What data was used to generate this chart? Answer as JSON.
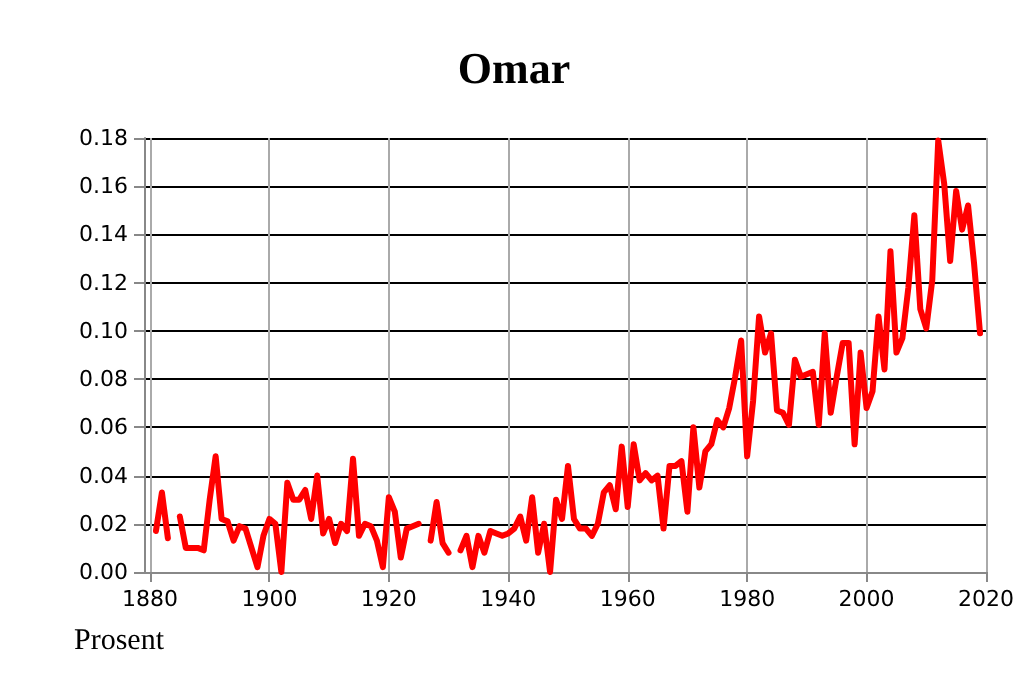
{
  "chart_data": {
    "type": "line",
    "title": "Omar",
    "ylabel": "Prosent",
    "x": [
      1881,
      1882,
      1883,
      1884,
      1885,
      1886,
      1887,
      1888,
      1889,
      1890,
      1891,
      1892,
      1893,
      1894,
      1895,
      1896,
      1897,
      1898,
      1899,
      1900,
      1901,
      1902,
      1903,
      1904,
      1905,
      1906,
      1907,
      1908,
      1909,
      1910,
      1911,
      1912,
      1913,
      1914,
      1915,
      1916,
      1917,
      1918,
      1919,
      1920,
      1921,
      1922,
      1923,
      1924,
      1925,
      1926,
      1927,
      1928,
      1929,
      1930,
      1931,
      1932,
      1933,
      1934,
      1935,
      1936,
      1937,
      1938,
      1939,
      1940,
      1941,
      1942,
      1943,
      1944,
      1945,
      1946,
      1947,
      1948,
      1949,
      1950,
      1951,
      1952,
      1953,
      1954,
      1955,
      1956,
      1957,
      1958,
      1959,
      1960,
      1961,
      1962,
      1963,
      1964,
      1965,
      1966,
      1967,
      1968,
      1969,
      1970,
      1971,
      1972,
      1973,
      1974,
      1975,
      1976,
      1977,
      1978,
      1979,
      1980,
      1981,
      1982,
      1983,
      1984,
      1985,
      1986,
      1987,
      1988,
      1989,
      1990,
      1991,
      1992,
      1993,
      1994,
      1995,
      1996,
      1997,
      1998,
      1999,
      2000,
      2001,
      2002,
      2003,
      2004,
      2005,
      2006,
      2007,
      2008,
      2009,
      2010,
      2011,
      2012,
      2013,
      2014,
      2015,
      2016,
      2017,
      2018,
      2019
    ],
    "series": [
      {
        "color": "#ff0000",
        "values": [
          0.017,
          0.033,
          0.014,
          null,
          0.023,
          0.01,
          0.01,
          0.01,
          0.009,
          0.03,
          0.048,
          0.022,
          0.021,
          0.013,
          0.019,
          0.018,
          0.01,
          0.002,
          0.015,
          0.022,
          0.02,
          0.0,
          0.037,
          0.03,
          0.03,
          0.034,
          0.022,
          0.04,
          0.016,
          0.022,
          0.012,
          0.02,
          0.017,
          0.047,
          0.015,
          0.02,
          0.019,
          0.013,
          0.002,
          0.031,
          0.025,
          0.006,
          0.018,
          0.019,
          0.02,
          null,
          0.013,
          0.029,
          0.012,
          0.008,
          null,
          0.009,
          0.015,
          0.002,
          0.015,
          0.008,
          0.017,
          0.016,
          0.015,
          0.016,
          0.018,
          0.023,
          0.013,
          0.031,
          0.008,
          0.02,
          0.0,
          0.03,
          0.022,
          0.044,
          0.022,
          0.018,
          0.018,
          0.015,
          0.02,
          0.033,
          0.036,
          0.026,
          0.052,
          0.027,
          0.053,
          0.038,
          0.041,
          0.038,
          0.04,
          0.018,
          0.044,
          0.044,
          0.046,
          0.025,
          0.06,
          0.035,
          0.05,
          0.053,
          0.063,
          0.06,
          0.068,
          0.081,
          0.096,
          0.048,
          0.071,
          0.106,
          0.091,
          0.099,
          0.067,
          0.066,
          0.061,
          0.088,
          0.081,
          0.082,
          0.083,
          0.061,
          0.099,
          0.066,
          0.081,
          0.095,
          0.095,
          0.053,
          0.091,
          0.068,
          0.075,
          0.106,
          0.084,
          0.133,
          0.091,
          0.097,
          0.118,
          0.148,
          0.109,
          0.101,
          0.121,
          0.179,
          0.161,
          0.129,
          0.158,
          0.142,
          0.152,
          0.128,
          0.099
        ]
      }
    ],
    "xlim": [
      1879,
      2020
    ],
    "xticks": [
      1880,
      1900,
      1920,
      1940,
      1960,
      1980,
      2000,
      2020
    ],
    "ylim": [
      0,
      0.18
    ],
    "yticks": [
      {
        "value": 0,
        "label": "0.00"
      },
      {
        "value": 0.02,
        "label": "0.02"
      },
      {
        "value": 0.04,
        "label": "0.04"
      },
      {
        "value": 0.06,
        "label": "0.06"
      },
      {
        "value": 0.08,
        "label": "0.08"
      },
      {
        "value": 0.1,
        "label": "0.10"
      },
      {
        "value": 0.12,
        "label": "0.12"
      },
      {
        "value": 0.14,
        "label": "0.14"
      },
      {
        "value": 0.16,
        "label": "0.16"
      },
      {
        "value": 0.18,
        "label": "0.18"
      }
    ],
    "grid": true,
    "marker": "none",
    "line_style": "solid"
  }
}
